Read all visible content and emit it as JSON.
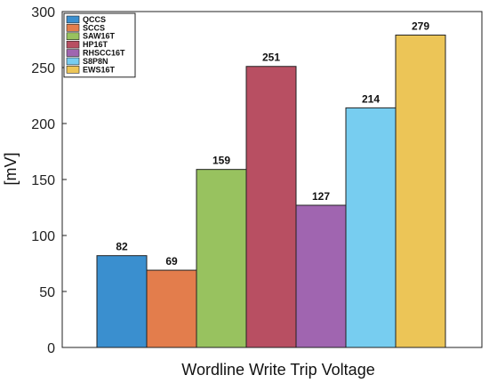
{
  "chart_data": {
    "type": "bar",
    "title": "",
    "xlabel": "Wordline Write Trip Voltage",
    "ylabel": "[mV]",
    "ylim": [
      0,
      300
    ],
    "yticks": [
      0,
      50,
      100,
      150,
      200,
      250,
      300
    ],
    "grid": false,
    "legend_position": "top-left",
    "series": [
      {
        "name": "QCCS",
        "value": 82,
        "color": "#3a8fcf"
      },
      {
        "name": "SCCS",
        "value": 69,
        "color": "#e37d4c"
      },
      {
        "name": "SAW16T",
        "value": 159,
        "color": "#98c25f"
      },
      {
        "name": "HP16T",
        "value": 251,
        "color": "#b84f62"
      },
      {
        "name": "RHSCC16T",
        "value": 127,
        "color": "#a065b0"
      },
      {
        "name": "S8P8N",
        "value": 214,
        "color": "#77cdf0"
      },
      {
        "name": "EWS16T",
        "value": 279,
        "color": "#ecc557"
      }
    ]
  }
}
